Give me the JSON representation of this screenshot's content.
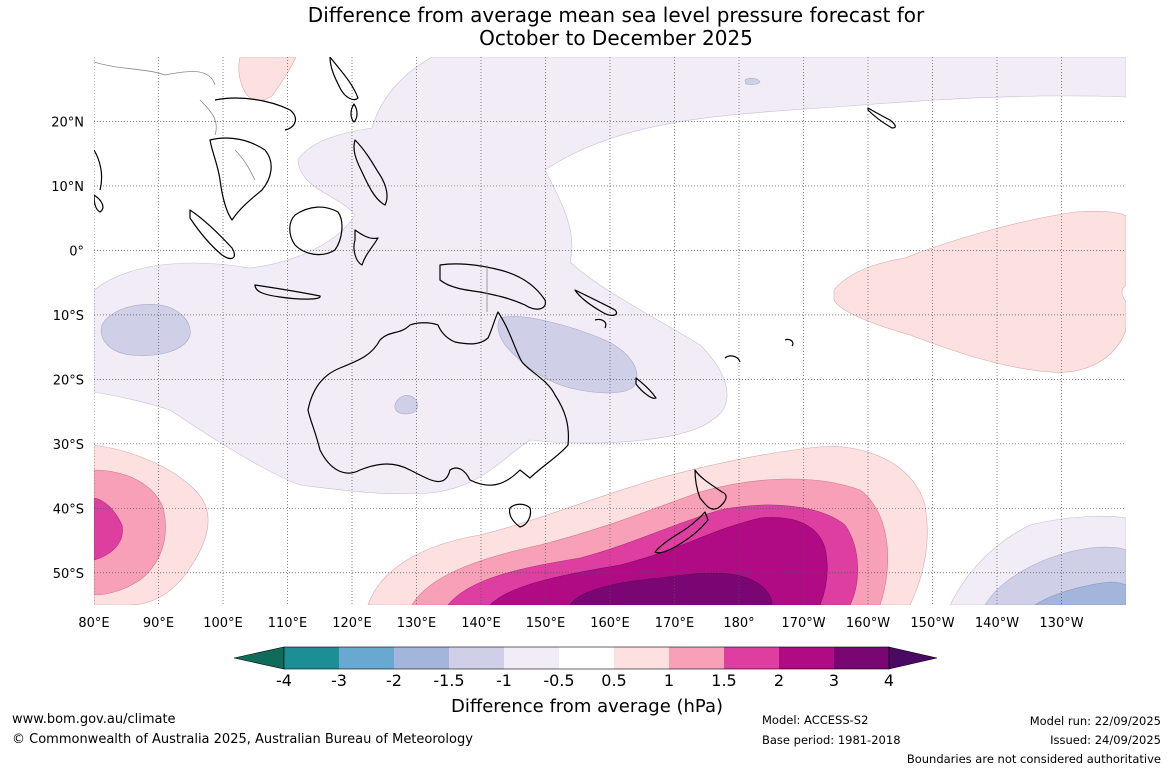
{
  "title": {
    "line1": "Difference from average mean sea level pressure forecast for",
    "line2": "October to December 2025"
  },
  "map": {
    "latitude_labels": [
      "20°N",
      "10°N",
      "0°",
      "10°S",
      "20°S",
      "30°S",
      "40°S",
      "50°S"
    ],
    "latitude_values": [
      20,
      10,
      0,
      -10,
      -20,
      -30,
      -40,
      -50
    ],
    "longitude_labels": [
      "80°E",
      "90°E",
      "100°E",
      "110°E",
      "120°E",
      "130°E",
      "140°E",
      "150°E",
      "160°E",
      "170°E",
      "180°",
      "170°W",
      "160°W",
      "150°W",
      "140°W",
      "130°W"
    ],
    "longitude_values": [
      80,
      90,
      100,
      110,
      120,
      130,
      140,
      150,
      160,
      170,
      180,
      190,
      200,
      210,
      220,
      230
    ],
    "extent": {
      "lon_min": 80,
      "lon_max": 240,
      "lat_min": -55,
      "lat_max": 30
    }
  },
  "colorbar": {
    "title": "Difference from average (hPa)",
    "tick_labels": [
      "-4",
      "-3",
      "-2",
      "-1.5",
      "-1",
      "-0.5",
      "0.5",
      "1",
      "1.5",
      "2",
      "3",
      "4"
    ],
    "colors": {
      "below_min": "#0f6b5a",
      "bins": [
        "#1b8f95",
        "#69a9d1",
        "#a4b5dc",
        "#cfd0e7",
        "#f1ecf6",
        "#ffffff",
        "#fde0e0",
        "#f8a0b8",
        "#de3ea0",
        "#b00a84",
        "#7a0673"
      ],
      "above_max": "#4a0a63"
    }
  },
  "footer": {
    "website": "www.bom.gov.au/climate",
    "copyright": "© Commonwealth of Australia 2025, Australian Bureau of Meteorology",
    "model": "Model: ACCESS-S2",
    "base_period": "Base period: 1981-2018",
    "model_run": "Model run: 22/09/2025",
    "issued": "Issued: 24/09/2025",
    "disclaimer": "Boundaries are not considered authoritative"
  }
}
